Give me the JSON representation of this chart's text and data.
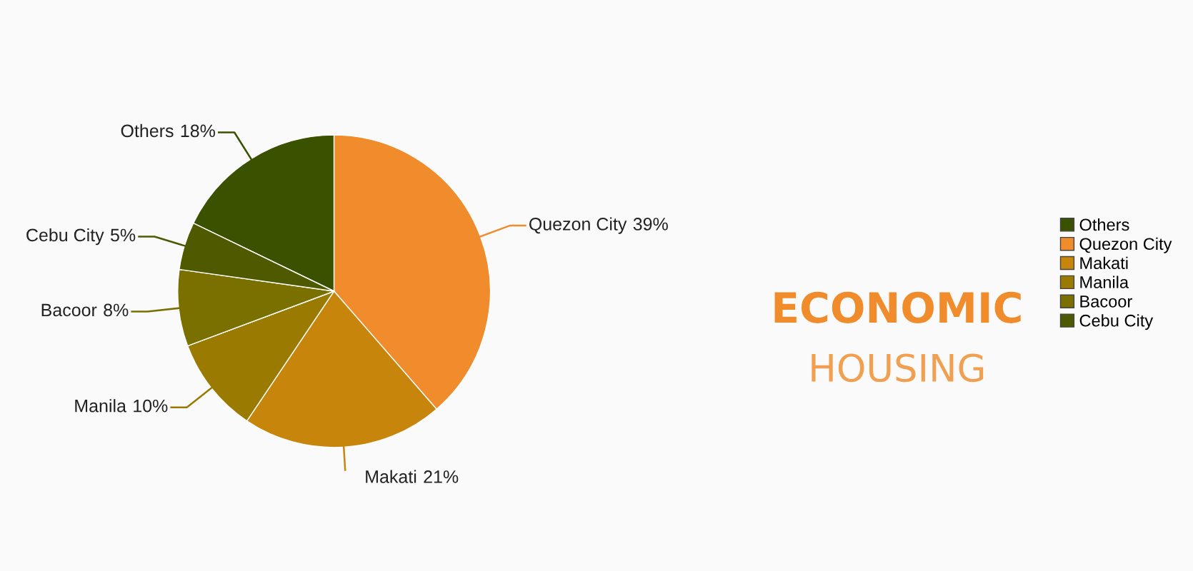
{
  "chart_data": {
    "type": "pie",
    "title": "ECONOMIC",
    "subtitle": "HOUSING",
    "categories": [
      "Others",
      "Quezon City",
      "Makati",
      "Manila",
      "Bacoor",
      "Cebu City"
    ],
    "values": [
      18,
      39,
      21,
      10,
      8,
      5
    ],
    "colors": [
      "#3a5200",
      "#f08c2c",
      "#c8850c",
      "#9a7a00",
      "#7a7000",
      "#4f5a00"
    ],
    "value_labels": [
      "18%",
      "39%",
      "21%",
      "10%",
      "8%",
      "5%"
    ],
    "legend": "right"
  }
}
